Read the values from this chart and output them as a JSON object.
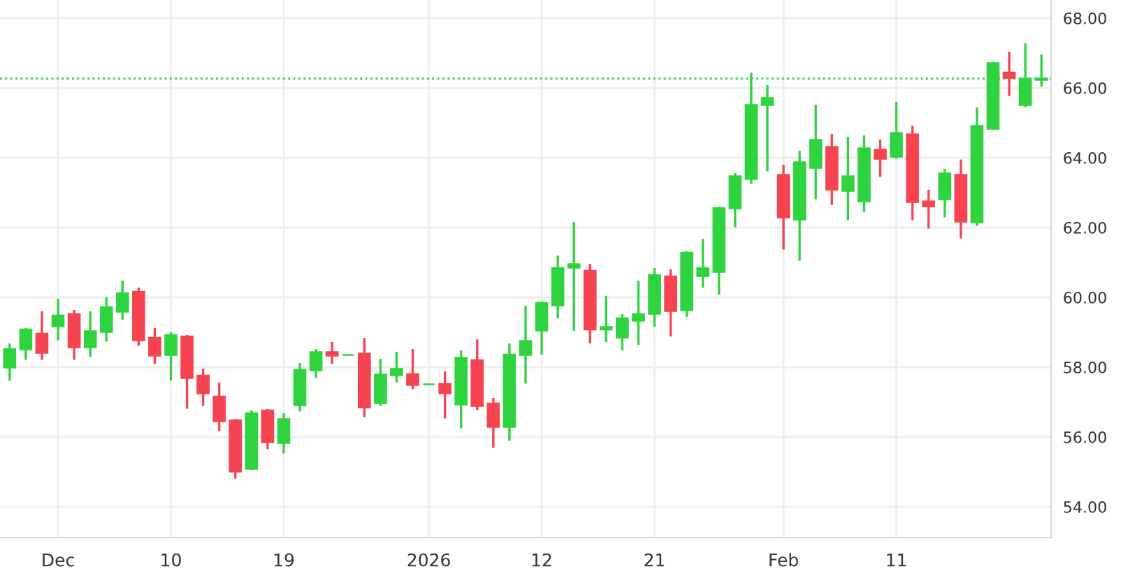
{
  "chart_data": {
    "type": "candlestick",
    "categories": [
      null,
      null,
      null,
      "Dec",
      null,
      null,
      null,
      null,
      null,
      null,
      "10",
      null,
      null,
      null,
      null,
      null,
      null,
      "19",
      null,
      null,
      null,
      null,
      null,
      null,
      null,
      null,
      "2026",
      null,
      null,
      null,
      null,
      null,
      null,
      "12",
      null,
      null,
      null,
      null,
      null,
      null,
      "21",
      null,
      null,
      null,
      null,
      null,
      null,
      null,
      "Feb",
      null,
      null,
      null,
      null,
      null,
      null,
      "11",
      null,
      null,
      null,
      null,
      null,
      null,
      null,
      null,
      null
    ],
    "ohlc": [
      [
        57.99,
        58.68,
        57.61,
        58.52
      ],
      [
        58.51,
        59.12,
        58.21,
        59.08
      ],
      [
        58.96,
        59.6,
        58.21,
        58.41
      ],
      [
        59.17,
        59.96,
        58.77,
        59.48
      ],
      [
        59.52,
        59.64,
        58.21,
        58.57
      ],
      [
        58.57,
        59.6,
        58.29,
        59.03
      ],
      [
        59.01,
        60.0,
        58.73,
        59.72
      ],
      [
        59.59,
        60.48,
        59.36,
        60.12
      ],
      [
        60.16,
        60.28,
        58.61,
        58.77
      ],
      [
        58.84,
        59.12,
        58.09,
        58.33
      ],
      [
        58.35,
        59.0,
        57.61,
        58.92
      ],
      [
        58.88,
        58.92,
        56.81,
        57.69
      ],
      [
        57.76,
        57.96,
        56.89,
        57.25
      ],
      [
        57.16,
        57.56,
        56.17,
        56.45
      ],
      [
        56.48,
        56.51,
        54.81,
        55.01
      ],
      [
        55.09,
        56.76,
        55.05,
        56.68
      ],
      [
        56.76,
        56.8,
        55.65,
        55.85
      ],
      [
        55.83,
        56.68,
        55.53,
        56.51
      ],
      [
        56.91,
        58.12,
        56.73,
        57.92
      ],
      [
        57.91,
        58.52,
        57.69,
        58.43
      ],
      [
        58.43,
        58.72,
        58.09,
        58.33
      ],
      [
        58.35,
        58.35,
        58.35,
        58.35
      ],
      [
        58.39,
        58.84,
        56.57,
        56.85
      ],
      [
        56.97,
        58.24,
        56.89,
        57.79
      ],
      [
        57.77,
        58.44,
        57.56,
        57.95
      ],
      [
        57.8,
        58.52,
        57.37,
        57.49
      ],
      [
        57.51,
        57.51,
        57.51,
        57.51
      ],
      [
        57.52,
        57.88,
        56.53,
        57.25
      ],
      [
        56.93,
        58.48,
        56.25,
        58.27
      ],
      [
        58.2,
        58.8,
        56.77,
        56.89
      ],
      [
        56.96,
        57.12,
        55.69,
        56.29
      ],
      [
        56.29,
        58.68,
        55.89,
        58.36
      ],
      [
        58.35,
        59.76,
        57.53,
        58.75
      ],
      [
        59.05,
        59.88,
        58.36,
        59.84
      ],
      [
        59.77,
        61.2,
        59.4,
        60.84
      ],
      [
        60.85,
        62.16,
        59.04,
        60.95
      ],
      [
        60.76,
        60.96,
        58.68,
        59.08
      ],
      [
        59.08,
        60.04,
        58.72,
        59.15
      ],
      [
        58.85,
        59.52,
        58.48,
        59.4
      ],
      [
        59.33,
        60.48,
        58.64,
        59.52
      ],
      [
        59.53,
        60.84,
        59.16,
        60.64
      ],
      [
        60.6,
        60.8,
        58.88,
        59.61
      ],
      [
        59.63,
        61.32,
        59.44,
        61.28
      ],
      [
        60.61,
        61.68,
        60.28,
        60.84
      ],
      [
        60.73,
        62.6,
        60.08,
        62.56
      ],
      [
        62.55,
        63.56,
        62.01,
        63.47
      ],
      [
        63.39,
        66.44,
        63.25,
        65.51
      ],
      [
        65.51,
        66.08,
        63.61,
        65.71
      ],
      [
        63.51,
        63.8,
        61.37,
        62.29
      ],
      [
        62.23,
        64.2,
        61.05,
        63.87
      ],
      [
        63.71,
        65.52,
        62.81,
        64.51
      ],
      [
        64.31,
        64.68,
        62.65,
        63.09
      ],
      [
        63.05,
        64.6,
        62.21,
        63.47
      ],
      [
        62.75,
        64.64,
        62.45,
        64.27
      ],
      [
        64.23,
        64.52,
        63.45,
        63.97
      ],
      [
        64.03,
        65.6,
        63.97,
        64.71
      ],
      [
        64.67,
        64.92,
        62.21,
        62.73
      ],
      [
        62.75,
        63.08,
        61.97,
        62.61
      ],
      [
        62.81,
        63.68,
        62.29,
        63.55
      ],
      [
        63.51,
        63.95,
        61.69,
        62.17
      ],
      [
        62.15,
        65.44,
        62.05,
        64.91
      ],
      [
        64.83,
        66.75,
        64.81,
        66.71
      ],
      [
        66.44,
        67.04,
        65.77,
        66.29
      ],
      [
        65.51,
        67.28,
        65.45,
        66.27
      ],
      [
        66.23,
        66.96,
        66.04,
        66.27
      ]
    ],
    "colors": [
      "#2fd33f",
      "#2fd33f",
      "#f5434f",
      "#2fd33f",
      "#f5434f",
      "#2fd33f",
      "#2fd33f",
      "#2fd33f",
      "#f5434f",
      "#f5434f",
      "#2fd33f",
      "#f5434f",
      "#f5434f",
      "#f5434f",
      "#f5434f",
      "#2fd33f",
      "#f5434f",
      "#2fd33f",
      "#2fd33f",
      "#2fd33f",
      "#f5434f",
      "#2fd33f",
      "#f5434f",
      "#2fd33f",
      "#2fd33f",
      "#f5434f",
      "#2fd33f",
      "#f5434f",
      "#2fd33f",
      "#f5434f",
      "#f5434f",
      "#2fd33f",
      "#2fd33f",
      "#2fd33f",
      "#2fd33f",
      "#2fd33f",
      "#f5434f",
      "#2fd33f",
      "#2fd33f",
      "#2fd33f",
      "#2fd33f",
      "#f5434f",
      "#2fd33f",
      "#2fd33f",
      "#2fd33f",
      "#2fd33f",
      "#2fd33f",
      "#2fd33f",
      "#f5434f",
      "#2fd33f",
      "#2fd33f",
      "#f5434f",
      "#2fd33f",
      "#2fd33f",
      "#f5434f",
      "#2fd33f",
      "#f5434f",
      "#f5434f",
      "#2fd33f",
      "#f5434f",
      "#2fd33f",
      "#2fd33f",
      "#f5434f",
      "#2fd33f",
      "#2fd33f"
    ],
    "ylim": [
      53.12,
      68.52
    ],
    "yticks": [
      {
        "value": 54,
        "label": "54.00"
      },
      {
        "value": 56,
        "label": "56.00"
      },
      {
        "value": 58,
        "label": "58.00"
      },
      {
        "value": 60,
        "label": "60.00"
      },
      {
        "value": 62,
        "label": "62.00"
      },
      {
        "value": 64,
        "label": "64.00"
      },
      {
        "value": 66,
        "label": "66.00"
      },
      {
        "value": 68,
        "label": "68.00"
      }
    ],
    "ref_lines": [
      {
        "axis": "y",
        "value": 66.27,
        "color": "#2fd33f",
        "line_style": "dotted"
      }
    ],
    "grid": true
  }
}
